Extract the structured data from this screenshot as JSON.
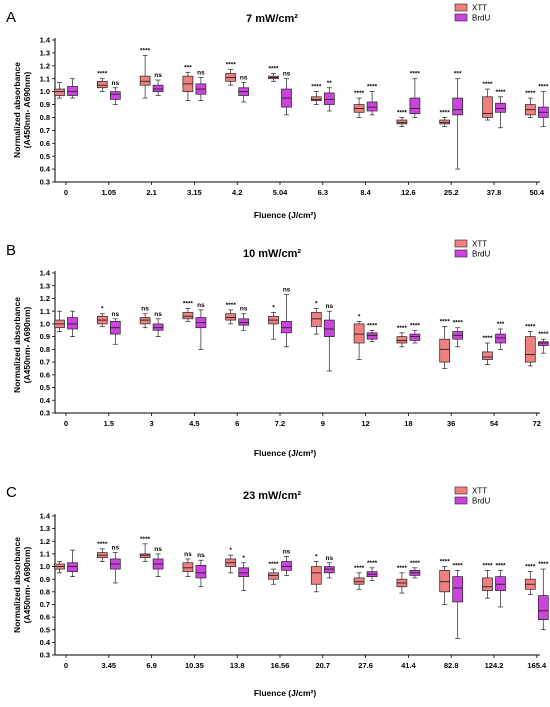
{
  "colors": {
    "xtt": "#f08080",
    "brdu": "#cc44dd",
    "stroke": "#222222"
  },
  "legend": {
    "xtt": "XTT",
    "brdu": "BrdU"
  },
  "axes": {
    "ylabel_line1": "Normalized absorbance",
    "ylabel_line2": "(A450nm- A690nm)",
    "xlabel": "Fluence (J/cm²)",
    "yticks": [
      "0.3",
      "0.4",
      "0.5",
      "0.6",
      "0.7",
      "0.8",
      "0.9",
      "1.0",
      "1.1",
      "1.2",
      "1.3",
      "1.4"
    ]
  },
  "chart_data": [
    {
      "type": "box",
      "panel": "A",
      "title": "7 mW/cm²",
      "xlabel": "Fluence (J/cm²)",
      "ylabel": "Normalized absorbance (A450nm- A690nm)",
      "ylim": [
        0.3,
        1.4
      ],
      "categories": [
        "0",
        "1.05",
        "2.1",
        "3.15",
        "4.2",
        "5.04",
        "6.3",
        "8.4",
        "12.6",
        "25.2",
        "37.8",
        "50.4"
      ],
      "series": [
        {
          "name": "XTT",
          "boxes": [
            {
              "min": 0.95,
              "q1": 0.97,
              "med": 1.0,
              "q3": 1.02,
              "max": 1.07
            },
            {
              "min": 1.0,
              "q1": 1.03,
              "med": 1.05,
              "q3": 1.08,
              "max": 1.1
            },
            {
              "min": 0.95,
              "q1": 1.05,
              "med": 1.08,
              "q3": 1.12,
              "max": 1.28
            },
            {
              "min": 0.93,
              "q1": 1.0,
              "med": 1.06,
              "q3": 1.12,
              "max": 1.15
            },
            {
              "min": 1.05,
              "q1": 1.08,
              "med": 1.11,
              "q3": 1.14,
              "max": 1.17
            },
            {
              "min": 1.08,
              "q1": 1.1,
              "med": 1.11,
              "q3": 1.12,
              "max": 1.14
            },
            {
              "min": 0.9,
              "q1": 0.93,
              "med": 0.94,
              "q3": 0.96,
              "max": 1.0
            },
            {
              "min": 0.8,
              "q1": 0.84,
              "med": 0.87,
              "q3": 0.9,
              "max": 0.95
            },
            {
              "min": 0.73,
              "q1": 0.75,
              "med": 0.76,
              "q3": 0.78,
              "max": 0.8
            },
            {
              "min": 0.73,
              "q1": 0.75,
              "med": 0.76,
              "q3": 0.78,
              "max": 0.8
            },
            {
              "min": 0.78,
              "q1": 0.8,
              "med": 0.83,
              "q3": 0.96,
              "max": 1.02
            },
            {
              "min": 0.8,
              "q1": 0.82,
              "med": 0.86,
              "q3": 0.9,
              "max": 0.95
            }
          ]
        },
        {
          "name": "BrdU",
          "boxes": [
            {
              "min": 0.95,
              "q1": 0.97,
              "med": 1.0,
              "q3": 1.04,
              "max": 1.1
            },
            {
              "min": 0.9,
              "q1": 0.94,
              "med": 0.98,
              "q3": 1.0,
              "max": 1.03
            },
            {
              "min": 0.97,
              "q1": 1.0,
              "med": 1.02,
              "q3": 1.05,
              "max": 1.09
            },
            {
              "min": 0.93,
              "q1": 0.98,
              "med": 1.02,
              "q3": 1.06,
              "max": 1.11
            },
            {
              "min": 0.92,
              "q1": 0.97,
              "med": 1.0,
              "q3": 1.03,
              "max": 1.07
            },
            {
              "min": 0.82,
              "q1": 0.88,
              "med": 0.95,
              "q3": 1.02,
              "max": 1.1
            },
            {
              "min": 0.85,
              "q1": 0.9,
              "med": 0.94,
              "q3": 0.99,
              "max": 1.03
            },
            {
              "min": 0.82,
              "q1": 0.85,
              "med": 0.88,
              "q3": 0.92,
              "max": 1.0
            },
            {
              "min": 0.8,
              "q1": 0.83,
              "med": 0.87,
              "q3": 0.95,
              "max": 1.1
            },
            {
              "min": 0.4,
              "q1": 0.82,
              "med": 0.86,
              "q3": 0.95,
              "max": 1.1
            },
            {
              "min": 0.72,
              "q1": 0.84,
              "med": 0.87,
              "q3": 0.91,
              "max": 0.96
            },
            {
              "min": 0.73,
              "q1": 0.8,
              "med": 0.84,
              "q3": 0.88,
              "max": 1.0
            }
          ]
        }
      ],
      "significance": {
        "XTT": [
          "",
          "****",
          "****",
          "***",
          "****",
          "****",
          "****",
          "****",
          "****",
          "****",
          "****",
          "****"
        ],
        "BrdU": [
          "",
          "ns",
          "ns",
          "ns",
          "ns",
          "ns",
          "**",
          "****",
          "****",
          "***",
          "****",
          "****"
        ]
      }
    },
    {
      "type": "box",
      "panel": "B",
      "title": "10 mW/cm²",
      "xlabel": "Fluence (J/cm²)",
      "ylabel": "Normalized absorbance (A450nm- A690nm)",
      "ylim": [
        0.3,
        1.4
      ],
      "categories": [
        "0",
        "1.5",
        "3",
        "4.5",
        "6",
        "7.2",
        "9",
        "12",
        "18",
        "36",
        "54",
        "72"
      ],
      "series": [
        {
          "name": "XTT",
          "boxes": [
            {
              "min": 0.94,
              "q1": 0.97,
              "med": 1.0,
              "q3": 1.03,
              "max": 1.1
            },
            {
              "min": 0.98,
              "q1": 1.0,
              "med": 1.03,
              "q3": 1.06,
              "max": 1.08
            },
            {
              "min": 0.97,
              "q1": 1.0,
              "med": 1.03,
              "q3": 1.05,
              "max": 1.08
            },
            {
              "min": 1.02,
              "q1": 1.04,
              "med": 1.06,
              "q3": 1.09,
              "max": 1.12
            },
            {
              "min": 1.0,
              "q1": 1.03,
              "med": 1.05,
              "q3": 1.08,
              "max": 1.11
            },
            {
              "min": 0.88,
              "q1": 1.0,
              "med": 1.03,
              "q3": 1.06,
              "max": 1.09
            },
            {
              "min": 0.92,
              "q1": 0.98,
              "med": 1.04,
              "q3": 1.09,
              "max": 1.12
            },
            {
              "min": 0.72,
              "q1": 0.85,
              "med": 0.92,
              "q3": 1.0,
              "max": 1.02
            },
            {
              "min": 0.82,
              "q1": 0.85,
              "med": 0.87,
              "q3": 0.9,
              "max": 0.93
            },
            {
              "min": 0.65,
              "q1": 0.7,
              "med": 0.8,
              "q3": 0.88,
              "max": 0.98
            },
            {
              "min": 0.68,
              "q1": 0.72,
              "med": 0.74,
              "q3": 0.78,
              "max": 0.85
            },
            {
              "min": 0.67,
              "q1": 0.7,
              "med": 0.76,
              "q3": 0.9,
              "max": 0.94
            }
          ]
        },
        {
          "name": "BrdU",
          "boxes": [
            {
              "min": 0.9,
              "q1": 0.96,
              "med": 1.0,
              "q3": 1.05,
              "max": 1.1
            },
            {
              "min": 0.84,
              "q1": 0.92,
              "med": 0.97,
              "q3": 1.02,
              "max": 1.04
            },
            {
              "min": 0.9,
              "q1": 0.95,
              "med": 0.97,
              "q3": 1.0,
              "max": 1.04
            },
            {
              "min": 0.8,
              "q1": 0.97,
              "med": 1.01,
              "q3": 1.05,
              "max": 1.11
            },
            {
              "min": 0.95,
              "q1": 0.99,
              "med": 1.01,
              "q3": 1.04,
              "max": 1.08
            },
            {
              "min": 0.82,
              "q1": 0.93,
              "med": 0.97,
              "q3": 1.02,
              "max": 1.23
            },
            {
              "min": 0.63,
              "q1": 0.9,
              "med": 0.96,
              "q3": 1.03,
              "max": 1.1
            },
            {
              "min": 0.86,
              "q1": 0.88,
              "med": 0.91,
              "q3": 0.93,
              "max": 0.95
            },
            {
              "min": 0.85,
              "q1": 0.87,
              "med": 0.9,
              "q3": 0.92,
              "max": 0.95
            },
            {
              "min": 0.82,
              "q1": 0.88,
              "med": 0.91,
              "q3": 0.94,
              "max": 0.97
            },
            {
              "min": 0.8,
              "q1": 0.85,
              "med": 0.89,
              "q3": 0.92,
              "max": 0.96
            },
            {
              "min": 0.77,
              "q1": 0.83,
              "med": 0.85,
              "q3": 0.86,
              "max": 0.88
            }
          ]
        }
      ],
      "significance": {
        "XTT": [
          "",
          "*",
          "ns",
          "****",
          "****",
          "*",
          "*",
          "*",
          "****",
          "****",
          "****",
          "****"
        ],
        "BrdU": [
          "",
          "ns",
          "ns",
          "ns",
          "ns",
          "ns",
          "ns",
          "****",
          "****",
          "****",
          "***",
          "****"
        ]
      }
    },
    {
      "type": "box",
      "panel": "C",
      "title": "23 mW/cm²",
      "xlabel": "Fluence (J/cm²)",
      "ylabel": "Normalized absorbance (A450nm- A690nm)",
      "ylim": [
        0.3,
        1.4
      ],
      "categories": [
        "0",
        "3.45",
        "6.9",
        "10.35",
        "13.8",
        "16.56",
        "20.7",
        "27.6",
        "41.4",
        "82.8",
        "124.2",
        "165.4"
      ],
      "series": [
        {
          "name": "XTT",
          "boxes": [
            {
              "min": 0.95,
              "q1": 0.98,
              "med": 1.0,
              "q3": 1.02,
              "max": 1.04
            },
            {
              "min": 1.04,
              "q1": 1.07,
              "med": 1.09,
              "q3": 1.11,
              "max": 1.14
            },
            {
              "min": 1.04,
              "q1": 1.07,
              "med": 1.09,
              "q3": 1.1,
              "max": 1.18
            },
            {
              "min": 0.92,
              "q1": 0.96,
              "med": 0.99,
              "q3": 1.03,
              "max": 1.06
            },
            {
              "min": 0.95,
              "q1": 1.0,
              "med": 1.03,
              "q3": 1.06,
              "max": 1.09
            },
            {
              "min": 0.86,
              "q1": 0.9,
              "med": 0.93,
              "q3": 0.95,
              "max": 0.98
            },
            {
              "min": 0.8,
              "q1": 0.86,
              "med": 0.95,
              "q3": 1.0,
              "max": 1.04
            },
            {
              "min": 0.82,
              "q1": 0.86,
              "med": 0.88,
              "q3": 0.91,
              "max": 0.95
            },
            {
              "min": 0.79,
              "q1": 0.84,
              "med": 0.87,
              "q3": 0.9,
              "max": 0.95
            },
            {
              "min": 0.7,
              "q1": 0.8,
              "med": 0.88,
              "q3": 0.97,
              "max": 1.0
            },
            {
              "min": 0.75,
              "q1": 0.81,
              "med": 0.84,
              "q3": 0.91,
              "max": 0.97
            },
            {
              "min": 0.78,
              "q1": 0.82,
              "med": 0.86,
              "q3": 0.9,
              "max": 0.96
            }
          ]
        },
        {
          "name": "BrdU",
          "boxes": [
            {
              "min": 0.92,
              "q1": 0.96,
              "med": 1.0,
              "q3": 1.03,
              "max": 1.13
            },
            {
              "min": 0.87,
              "q1": 0.98,
              "med": 1.02,
              "q3": 1.06,
              "max": 1.11
            },
            {
              "min": 0.92,
              "q1": 0.98,
              "med": 1.02,
              "q3": 1.06,
              "max": 1.1
            },
            {
              "min": 0.84,
              "q1": 0.91,
              "med": 0.95,
              "q3": 1.01,
              "max": 1.05
            },
            {
              "min": 0.81,
              "q1": 0.92,
              "med": 0.95,
              "q3": 0.99,
              "max": 1.03
            },
            {
              "min": 0.93,
              "q1": 0.97,
              "med": 1.0,
              "q3": 1.04,
              "max": 1.08
            },
            {
              "min": 0.91,
              "q1": 0.95,
              "med": 0.98,
              "q3": 1.0,
              "max": 1.03
            },
            {
              "min": 0.89,
              "q1": 0.92,
              "med": 0.94,
              "q3": 0.96,
              "max": 0.99
            },
            {
              "min": 0.91,
              "q1": 0.93,
              "med": 0.95,
              "q3": 0.97,
              "max": 0.99
            },
            {
              "min": 0.43,
              "q1": 0.72,
              "med": 0.83,
              "q3": 0.92,
              "max": 0.97
            },
            {
              "min": 0.68,
              "q1": 0.81,
              "med": 0.86,
              "q3": 0.92,
              "max": 0.97
            },
            {
              "min": 0.5,
              "q1": 0.58,
              "med": 0.65,
              "q3": 0.77,
              "max": 0.98
            }
          ]
        }
      ],
      "significance": {
        "XTT": [
          "",
          "****",
          "****",
          "ns",
          "*",
          "****",
          "*",
          "****",
          "****",
          "****",
          "****",
          "****"
        ],
        "BrdU": [
          "",
          "ns",
          "ns",
          "ns",
          "*",
          "ns",
          "ns",
          "****",
          "****",
          "****",
          "****",
          "****"
        ]
      }
    }
  ]
}
